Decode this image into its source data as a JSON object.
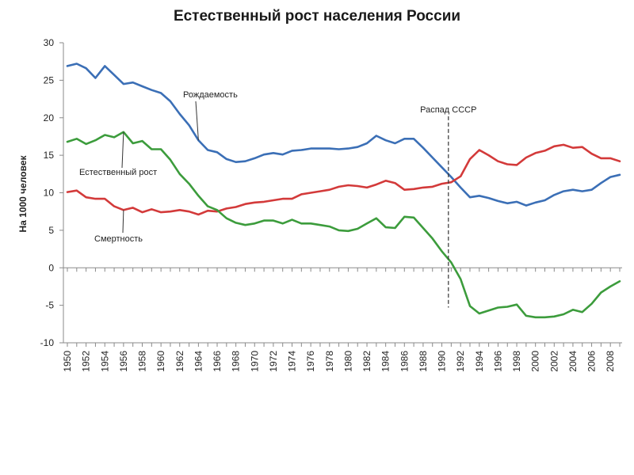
{
  "chart_data": {
    "type": "line",
    "title": "Естественный рост населения России",
    "ylabel": "На 1000 человек",
    "xlabel": "",
    "ylim": [
      -10,
      30
    ],
    "yticks": [
      -10,
      -5,
      0,
      5,
      10,
      15,
      20,
      25,
      30
    ],
    "xlim": [
      1950,
      2009
    ],
    "xtick_labels": [
      "1950",
      "1952",
      "1954",
      "1956",
      "1958",
      "1960",
      "1962",
      "1964",
      "1966",
      "1968",
      "1970",
      "1972",
      "1974",
      "1976",
      "1978",
      "1980",
      "1982",
      "1984",
      "1986",
      "1988",
      "1990",
      "1992",
      "1994",
      "1996",
      "1998",
      "2000",
      "2002",
      "2004",
      "2006",
      "2008"
    ],
    "grid": false,
    "legend": "none",
    "x": [
      1950,
      1951,
      1952,
      1953,
      1954,
      1955,
      1956,
      1957,
      1958,
      1959,
      1960,
      1961,
      1962,
      1963,
      1964,
      1965,
      1966,
      1967,
      1968,
      1969,
      1970,
      1971,
      1972,
      1973,
      1974,
      1975,
      1976,
      1977,
      1978,
      1979,
      1980,
      1981,
      1982,
      1983,
      1984,
      1985,
      1986,
      1987,
      1988,
      1989,
      1990,
      1991,
      1992,
      1993,
      1994,
      1995,
      1996,
      1997,
      1998,
      1999,
      2000,
      2001,
      2002,
      2003,
      2004,
      2005,
      2006,
      2007,
      2008,
      2009
    ],
    "series": [
      {
        "name": "Рождаемость",
        "color": "#3b6fb6",
        "values": [
          26.9,
          27.2,
          26.6,
          25.3,
          26.9,
          25.7,
          24.5,
          24.7,
          24.2,
          23.7,
          23.3,
          22.2,
          20.5,
          19.0,
          17.0,
          15.7,
          15.4,
          14.5,
          14.1,
          14.2,
          14.6,
          15.1,
          15.3,
          15.1,
          15.6,
          15.7,
          15.9,
          15.9,
          15.9,
          15.8,
          15.9,
          16.1,
          16.6,
          17.6,
          17.0,
          16.6,
          17.2,
          17.2,
          16.0,
          14.7,
          13.4,
          12.1,
          10.7,
          9.4,
          9.6,
          9.3,
          8.9,
          8.6,
          8.8,
          8.3,
          8.7,
          9.0,
          9.7,
          10.2,
          10.4,
          10.2,
          10.4,
          11.3,
          12.1,
          12.4
        ]
      },
      {
        "name": "Смертность",
        "color": "#d33a3a",
        "values": [
          10.1,
          10.3,
          9.4,
          9.2,
          9.2,
          8.2,
          7.7,
          8.0,
          7.4,
          7.8,
          7.4,
          7.5,
          7.7,
          7.5,
          7.1,
          7.6,
          7.5,
          7.9,
          8.1,
          8.5,
          8.7,
          8.8,
          9.0,
          9.2,
          9.2,
          9.8,
          10.0,
          10.2,
          10.4,
          10.8,
          11.0,
          10.9,
          10.7,
          11.1,
          11.6,
          11.3,
          10.4,
          10.5,
          10.7,
          10.8,
          11.2,
          11.4,
          12.2,
          14.5,
          15.7,
          15.0,
          14.2,
          13.8,
          13.7,
          14.7,
          15.3,
          15.6,
          16.2,
          16.4,
          16.0,
          16.1,
          15.2,
          14.6,
          14.6,
          14.2
        ]
      },
      {
        "name": "Естественный рост",
        "color": "#3c9c3c",
        "values": [
          16.8,
          17.2,
          16.5,
          17.0,
          17.7,
          17.4,
          18.1,
          16.6,
          16.9,
          15.8,
          15.8,
          14.4,
          12.5,
          11.2,
          9.6,
          8.2,
          7.7,
          6.6,
          6.0,
          5.7,
          5.9,
          6.3,
          6.3,
          5.9,
          6.4,
          5.9,
          5.9,
          5.7,
          5.5,
          5.0,
          4.9,
          5.2,
          5.9,
          6.6,
          5.4,
          5.3,
          6.8,
          6.7,
          5.3,
          3.9,
          2.2,
          0.7,
          -1.5,
          -5.1,
          -6.1,
          -5.7,
          -5.3,
          -5.2,
          -4.9,
          -6.4,
          -6.6,
          -6.6,
          -6.5,
          -6.2,
          -5.6,
          -5.9,
          -4.8,
          -3.3,
          -2.5,
          -1.8
        ]
      }
    ],
    "annotations": [
      {
        "text": "Рождаемость",
        "target_series": "Рождаемость",
        "target_x": 1964
      },
      {
        "text": "Естественный рост",
        "target_series": "Естественный рост",
        "target_x": 1956
      },
      {
        "text": "Смертность",
        "target_series": "Смертность",
        "target_x": 1956
      },
      {
        "text": "Распад СССР",
        "vline_x": 1990.7
      }
    ]
  }
}
